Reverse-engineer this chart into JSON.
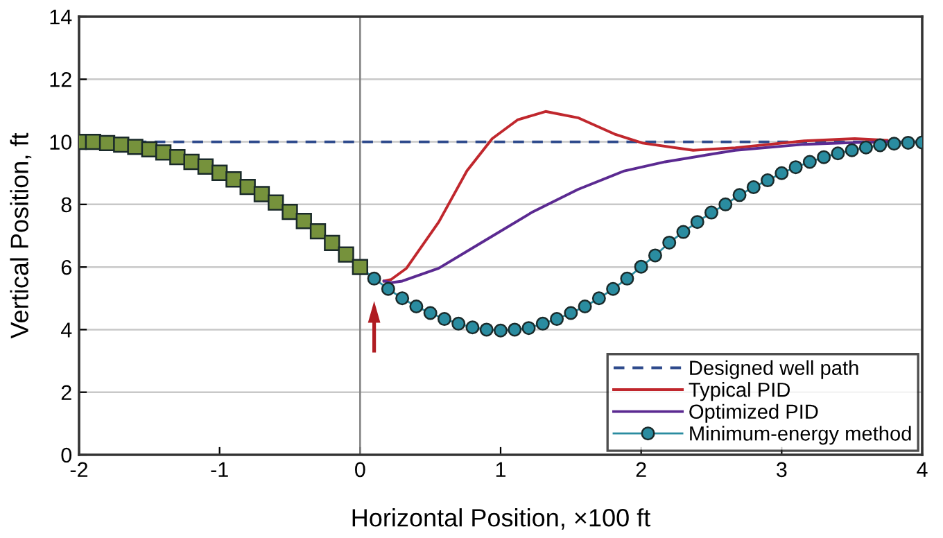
{
  "chart_data": {
    "type": "line",
    "xlabel": "Horizontal Position, ×100 ft",
    "ylabel": "Vertical Position, ft",
    "xlim": [
      -2,
      4
    ],
    "xticks": [
      -2,
      -1,
      0,
      1,
      2,
      3,
      4
    ],
    "ylim": [
      0,
      14
    ],
    "yticks": [
      0,
      2,
      4,
      6,
      8,
      10,
      12,
      14
    ],
    "grid": "y",
    "legend": "bottom right",
    "ref_lines": [
      {
        "axis": "x",
        "value": 0,
        "color": "#808080"
      }
    ],
    "series": [
      {
        "name": "Designed well path",
        "color": "#2e4a8c",
        "line_style": "dashed",
        "x": [
          -2,
          4
        ],
        "values": [
          10,
          10
        ]
      },
      {
        "name": "Typical PID",
        "color": "#c0272d",
        "line_style": "solid",
        "x": [
          0.17,
          0.22,
          0.33,
          0.56,
          0.76,
          0.94,
          1.12,
          1.32,
          1.55,
          1.81,
          2.01,
          2.37,
          2.67,
          3.16,
          3.52,
          3.75
        ],
        "values": [
          5.55,
          5.6,
          5.96,
          7.44,
          9.07,
          10.1,
          10.7,
          10.97,
          10.77,
          10.25,
          9.96,
          9.73,
          9.81,
          10.03,
          10.1,
          10.05
        ]
      },
      {
        "name": "Optimized PID",
        "color": "#5b2a91",
        "line_style": "solid",
        "x": [
          0.17,
          0.22,
          0.3,
          0.56,
          0.89,
          1.22,
          1.55,
          1.88,
          2.17,
          2.67,
          3.16,
          3.49,
          3.75
        ],
        "values": [
          5.55,
          5.5,
          5.55,
          5.96,
          6.85,
          7.74,
          8.48,
          9.07,
          9.36,
          9.73,
          9.92,
          9.97,
          10.0
        ]
      },
      {
        "name": "Minimum-energy method",
        "color": "#2a8ca0",
        "line_style": "solid",
        "marker": "circle",
        "x": [
          0,
          0.1,
          0.2,
          0.3,
          0.4,
          0.5,
          0.6,
          0.7,
          0.8,
          0.9,
          1.0,
          1.1,
          1.2,
          1.3,
          1.4,
          1.5,
          1.6,
          1.7,
          1.8,
          1.9,
          2.0,
          2.1,
          2.2,
          2.3,
          2.4,
          2.5,
          2.6,
          2.7,
          2.8,
          2.9,
          3.0,
          3.1,
          3.2,
          3.3,
          3.4,
          3.5,
          3.6,
          3.7,
          3.8,
          3.9,
          4.0
        ],
        "values": [
          6.0,
          5.63,
          5.3,
          5.0,
          4.74,
          4.53,
          4.34,
          4.19,
          4.07,
          4.0,
          3.97,
          4.0,
          4.05,
          4.19,
          4.34,
          4.53,
          4.74,
          5.0,
          5.3,
          5.63,
          6.01,
          6.37,
          6.78,
          7.12,
          7.44,
          7.74,
          8.0,
          8.3,
          8.55,
          8.77,
          9.0,
          9.19,
          9.36,
          9.51,
          9.63,
          9.73,
          9.82,
          9.89,
          9.94,
          9.97,
          9.98
        ]
      },
      {
        "type": "scatter",
        "color": "#76923c",
        "marker": "square",
        "x": [
          -2,
          -1.9,
          -1.8,
          -1.7,
          -1.6,
          -1.5,
          -1.4,
          -1.3,
          -1.2,
          -1.1,
          -1.0,
          -0.9,
          -0.8,
          -0.7,
          -0.6,
          -0.5,
          -0.4,
          -0.3,
          -0.2,
          -0.1,
          0
        ],
        "values": [
          10.0,
          10.0,
          9.96,
          9.91,
          9.84,
          9.76,
          9.66,
          9.51,
          9.36,
          9.21,
          9.01,
          8.8,
          8.56,
          8.33,
          8.06,
          7.76,
          7.47,
          7.14,
          6.77,
          6.4,
          6.0
        ]
      }
    ]
  }
}
